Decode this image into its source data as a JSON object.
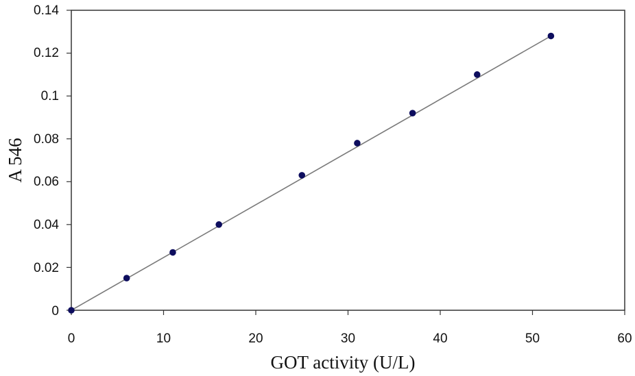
{
  "chart_data": {
    "type": "scatter",
    "title": "",
    "xlabel": "GOT activity (U/L)",
    "ylabel": "A 546",
    "xlim": [
      0,
      60
    ],
    "ylim": [
      0,
      0.14
    ],
    "x_ticks": [
      "0",
      "10",
      "20",
      "30",
      "40",
      "50",
      "60"
    ],
    "y_ticks": [
      "0",
      "0.02",
      "0.04",
      "0.06",
      "0.08",
      "0.1",
      "0.12",
      "0.14"
    ],
    "grid": false,
    "series": [
      {
        "x": [
          0,
          6,
          11,
          16,
          25,
          31,
          37,
          44,
          52
        ],
        "y": [
          0,
          0.015,
          0.027,
          0.04,
          0.063,
          0.078,
          0.092,
          0.11,
          0.128
        ]
      }
    ],
    "trendline": {
      "type": "linear",
      "x": [
        0,
        52
      ],
      "y": [
        0,
        0.128
      ]
    },
    "colors": {
      "points": "#0d0d5e",
      "trendline": "#7a7a7a",
      "axes": "#333333"
    }
  }
}
